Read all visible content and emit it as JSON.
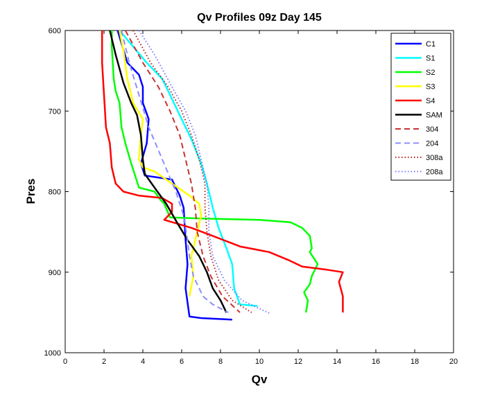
{
  "chart_data": {
    "type": "line",
    "title": "Qv Profiles 09z Day 145",
    "xlabel": "Qv",
    "ylabel": "Pres",
    "xlim": [
      0,
      20
    ],
    "ylim": [
      600,
      1000
    ],
    "y_reversed": true,
    "grid": false,
    "legend_position": "top-right",
    "x_ticks": [
      "0",
      "2",
      "4",
      "6",
      "8",
      "10",
      "12",
      "14",
      "16",
      "18",
      "20"
    ],
    "y_ticks": [
      "600",
      "700",
      "800",
      "900",
      "1000"
    ],
    "series": [
      {
        "name": "C1",
        "color": "#0000ff",
        "style": "solid",
        "points": [
          [
            2.7,
            600
          ],
          [
            3.2,
            640
          ],
          [
            3.8,
            655
          ],
          [
            4.0,
            670
          ],
          [
            4.0,
            690
          ],
          [
            4.3,
            710
          ],
          [
            4.2,
            740
          ],
          [
            3.9,
            765
          ],
          [
            4.1,
            780
          ],
          [
            5.5,
            785
          ],
          [
            5.9,
            805
          ],
          [
            6.1,
            820
          ],
          [
            6.2,
            860
          ],
          [
            6.3,
            890
          ],
          [
            6.2,
            920
          ],
          [
            6.4,
            955
          ],
          [
            7.0,
            957
          ],
          [
            8.6,
            959
          ]
        ]
      },
      {
        "name": "S1",
        "color": "#00ffff",
        "style": "solid",
        "points": [
          [
            2.8,
            600
          ],
          [
            3.5,
            620
          ],
          [
            4.2,
            640
          ],
          [
            5.0,
            660
          ],
          [
            5.6,
            690
          ],
          [
            6.0,
            710
          ],
          [
            6.5,
            735
          ],
          [
            7.0,
            765
          ],
          [
            7.3,
            790
          ],
          [
            7.6,
            820
          ],
          [
            7.9,
            845
          ],
          [
            8.3,
            870
          ],
          [
            8.6,
            890
          ],
          [
            8.7,
            920
          ],
          [
            9.0,
            940
          ],
          [
            9.9,
            942
          ]
        ]
      },
      {
        "name": "S2",
        "color": "#00ff00",
        "style": "solid",
        "points": [
          [
            2.4,
            600
          ],
          [
            2.4,
            620
          ],
          [
            2.5,
            660
          ],
          [
            2.6,
            675
          ],
          [
            2.8,
            690
          ],
          [
            2.9,
            720
          ],
          [
            3.1,
            740
          ],
          [
            3.4,
            765
          ],
          [
            3.6,
            780
          ],
          [
            3.8,
            795
          ],
          [
            4.6,
            800
          ],
          [
            4.9,
            810
          ],
          [
            5.1,
            815
          ],
          [
            5.4,
            832
          ],
          [
            6.5,
            833
          ],
          [
            8.0,
            834
          ],
          [
            10.0,
            835
          ],
          [
            11.6,
            838
          ],
          [
            12.2,
            845
          ],
          [
            12.6,
            855
          ],
          [
            12.7,
            870
          ],
          [
            12.6,
            875
          ],
          [
            13.0,
            890
          ],
          [
            12.7,
            905
          ],
          [
            12.6,
            915
          ],
          [
            12.3,
            925
          ],
          [
            12.5,
            935
          ],
          [
            12.4,
            950
          ]
        ]
      },
      {
        "name": "S3",
        "color": "#ffff00",
        "style": "solid",
        "points": [
          [
            2.8,
            600
          ],
          [
            3.0,
            625
          ],
          [
            3.2,
            660
          ],
          [
            3.5,
            690
          ],
          [
            4.0,
            710
          ],
          [
            3.9,
            730
          ],
          [
            3.8,
            760
          ],
          [
            4.0,
            770
          ],
          [
            4.6,
            775
          ],
          [
            5.5,
            790
          ],
          [
            6.4,
            805
          ],
          [
            6.9,
            815
          ],
          [
            7.0,
            830
          ],
          [
            6.8,
            850
          ],
          [
            6.5,
            880
          ],
          [
            6.6,
            905
          ],
          [
            6.4,
            930
          ]
        ]
      },
      {
        "name": "S4",
        "color": "#ff0000",
        "style": "solid",
        "points": [
          [
            1.9,
            600
          ],
          [
            1.9,
            640
          ],
          [
            2.0,
            680
          ],
          [
            2.1,
            720
          ],
          [
            2.3,
            740
          ],
          [
            2.4,
            770
          ],
          [
            2.6,
            790
          ],
          [
            3.0,
            800
          ],
          [
            3.8,
            805
          ],
          [
            5.0,
            808
          ],
          [
            5.5,
            815
          ],
          [
            5.5,
            825
          ],
          [
            5.1,
            835
          ],
          [
            5.8,
            840
          ],
          [
            6.5,
            845
          ],
          [
            7.6,
            855
          ],
          [
            9.0,
            868
          ],
          [
            10.5,
            875
          ],
          [
            11.5,
            885
          ],
          [
            12.2,
            893
          ],
          [
            13.5,
            897
          ],
          [
            14.3,
            900
          ],
          [
            14.1,
            912
          ],
          [
            14.3,
            930
          ],
          [
            14.3,
            950
          ]
        ]
      },
      {
        "name": "SAM",
        "color": "#000000",
        "style": "solid",
        "points": [
          [
            2.3,
            600
          ],
          [
            2.6,
            630
          ],
          [
            3.0,
            665
          ],
          [
            3.4,
            690
          ],
          [
            3.7,
            705
          ],
          [
            3.9,
            730
          ],
          [
            4.0,
            760
          ],
          [
            4.1,
            778
          ],
          [
            4.6,
            795
          ],
          [
            5.2,
            815
          ],
          [
            5.8,
            840
          ],
          [
            6.3,
            860
          ],
          [
            6.9,
            880
          ],
          [
            7.3,
            900
          ],
          [
            7.6,
            920
          ],
          [
            8.0,
            935
          ],
          [
            8.3,
            950
          ]
        ]
      },
      {
        "name": "304",
        "color": "#c83232",
        "style": "dashed",
        "points": [
          [
            3.1,
            600
          ],
          [
            4.0,
            640
          ],
          [
            4.8,
            670
          ],
          [
            5.4,
            700
          ],
          [
            5.9,
            730
          ],
          [
            6.2,
            760
          ],
          [
            6.5,
            790
          ],
          [
            6.7,
            820
          ],
          [
            6.8,
            850
          ],
          [
            7.1,
            880
          ],
          [
            7.5,
            905
          ],
          [
            8.1,
            930
          ],
          [
            9.0,
            950
          ]
        ]
      },
      {
        "name": "204",
        "color": "#8c8cff",
        "style": "dashed",
        "points": [
          [
            2.9,
            600
          ],
          [
            3.3,
            640
          ],
          [
            3.8,
            680
          ],
          [
            4.3,
            720
          ],
          [
            5.0,
            760
          ],
          [
            5.7,
            800
          ],
          [
            6.1,
            830
          ],
          [
            6.3,
            860
          ],
          [
            6.4,
            880
          ],
          [
            6.6,
            905
          ],
          [
            7.1,
            930
          ],
          [
            7.6,
            940
          ],
          [
            8.4,
            950
          ]
        ]
      },
      {
        "name": "308a",
        "color": "#b41e1e",
        "style": "dotted",
        "points": [
          [
            3.5,
            600
          ],
          [
            4.4,
            640
          ],
          [
            5.3,
            670
          ],
          [
            6.0,
            700
          ],
          [
            6.5,
            730
          ],
          [
            6.9,
            760
          ],
          [
            7.2,
            790
          ],
          [
            7.2,
            820
          ],
          [
            7.3,
            850
          ],
          [
            7.5,
            880
          ],
          [
            7.9,
            910
          ],
          [
            8.6,
            935
          ],
          [
            9.6,
            950
          ]
        ]
      },
      {
        "name": "208a",
        "color": "#7878ff",
        "style": "dotted",
        "points": [
          [
            3.8,
            600
          ],
          [
            4.6,
            630
          ],
          [
            5.5,
            670
          ],
          [
            6.2,
            700
          ],
          [
            6.7,
            730
          ],
          [
            7.0,
            760
          ],
          [
            7.3,
            790
          ],
          [
            7.4,
            820
          ],
          [
            7.4,
            850
          ],
          [
            7.6,
            880
          ],
          [
            8.2,
            910
          ],
          [
            9.1,
            935
          ],
          [
            10.6,
            952
          ]
        ]
      }
    ]
  }
}
